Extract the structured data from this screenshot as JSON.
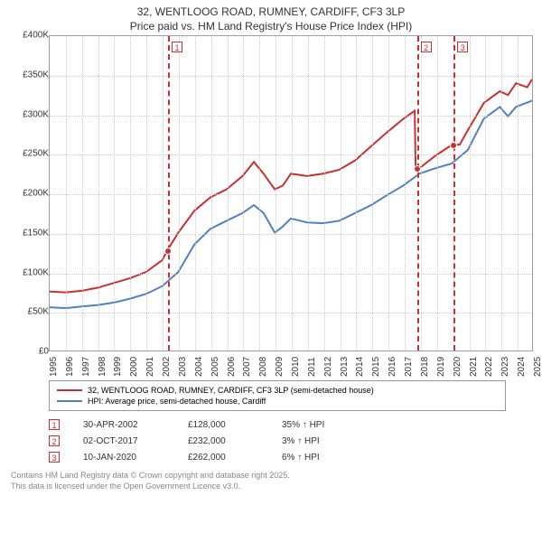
{
  "title": {
    "line1": "32, WENTLOOG ROAD, RUMNEY, CARDIFF, CF3 3LP",
    "line2": "Price paid vs. HM Land Registry's House Price Index (HPI)"
  },
  "chart": {
    "type": "line",
    "background_color": "#ffffff",
    "grid_color": "#cccccc",
    "border_color": "#a0a0a0",
    "x_min": 1995,
    "x_max": 2025,
    "y_min": 0,
    "y_max": 400000,
    "y_ticks": [
      0,
      50000,
      100000,
      150000,
      200000,
      250000,
      300000,
      350000,
      400000
    ],
    "y_tick_labels": [
      "£0",
      "£50K",
      "£100K",
      "£150K",
      "£200K",
      "£250K",
      "£300K",
      "£350K",
      "£400K"
    ],
    "x_ticks": [
      1995,
      1996,
      1997,
      1998,
      1999,
      2000,
      2001,
      2002,
      2003,
      2004,
      2005,
      2006,
      2007,
      2008,
      2009,
      2010,
      2011,
      2012,
      2013,
      2014,
      2015,
      2016,
      2017,
      2018,
      2019,
      2020,
      2021,
      2022,
      2023,
      2024,
      2025
    ],
    "series": [
      {
        "name": "property",
        "label": "32, WENTLOOG ROAD, RUMNEY, CARDIFF, CF3 3LP (semi-detached house)",
        "color": "#c83030",
        "line_width": 2,
        "data": [
          [
            1995,
            75000
          ],
          [
            1996,
            74000
          ],
          [
            1997,
            76000
          ],
          [
            1998,
            80000
          ],
          [
            1999,
            86000
          ],
          [
            2000,
            92000
          ],
          [
            2001,
            100000
          ],
          [
            2002,
            115000
          ],
          [
            2002.33,
            128000
          ],
          [
            2003,
            150000
          ],
          [
            2004,
            178000
          ],
          [
            2005,
            195000
          ],
          [
            2006,
            205000
          ],
          [
            2007,
            222000
          ],
          [
            2007.7,
            240000
          ],
          [
            2008.3,
            225000
          ],
          [
            2009,
            205000
          ],
          [
            2009.5,
            210000
          ],
          [
            2010,
            225000
          ],
          [
            2011,
            222000
          ],
          [
            2012,
            225000
          ],
          [
            2013,
            230000
          ],
          [
            2014,
            242000
          ],
          [
            2015,
            260000
          ],
          [
            2016,
            278000
          ],
          [
            2017,
            295000
          ],
          [
            2017.7,
            305000
          ],
          [
            2017.76,
            232000
          ],
          [
            2018,
            232000
          ],
          [
            2019,
            248000
          ],
          [
            2020.03,
            262000
          ],
          [
            2020.5,
            262000
          ],
          [
            2021,
            280000
          ],
          [
            2022,
            315000
          ],
          [
            2023,
            330000
          ],
          [
            2023.5,
            325000
          ],
          [
            2024,
            340000
          ],
          [
            2024.7,
            335000
          ],
          [
            2025,
            345000
          ]
        ]
      },
      {
        "name": "hpi",
        "label": "HPI: Average price, semi-detached house, Cardiff",
        "color": "#5080c0",
        "line_width": 2,
        "data": [
          [
            1995,
            55000
          ],
          [
            1996,
            54000
          ],
          [
            1997,
            56000
          ],
          [
            1998,
            58000
          ],
          [
            1999,
            61000
          ],
          [
            2000,
            66000
          ],
          [
            2001,
            72000
          ],
          [
            2002,
            82000
          ],
          [
            2003,
            100000
          ],
          [
            2004,
            135000
          ],
          [
            2005,
            155000
          ],
          [
            2006,
            165000
          ],
          [
            2007,
            175000
          ],
          [
            2007.7,
            185000
          ],
          [
            2008.3,
            175000
          ],
          [
            2009,
            150000
          ],
          [
            2009.5,
            158000
          ],
          [
            2010,
            168000
          ],
          [
            2011,
            163000
          ],
          [
            2012,
            162000
          ],
          [
            2013,
            165000
          ],
          [
            2014,
            175000
          ],
          [
            2015,
            185000
          ],
          [
            2016,
            198000
          ],
          [
            2017,
            210000
          ],
          [
            2018,
            225000
          ],
          [
            2019,
            232000
          ],
          [
            2020,
            238000
          ],
          [
            2021,
            255000
          ],
          [
            2022,
            295000
          ],
          [
            2023,
            310000
          ],
          [
            2023.5,
            298000
          ],
          [
            2024,
            310000
          ],
          [
            2025,
            318000
          ]
        ]
      }
    ],
    "reference_lines": [
      {
        "num": "1",
        "x": 2002.33,
        "color": "#c83030"
      },
      {
        "num": "2",
        "x": 2017.76,
        "color": "#c83030"
      },
      {
        "num": "3",
        "x": 2020.03,
        "color": "#c83030"
      }
    ],
    "markers": [
      {
        "x": 2002.33,
        "y": 128000
      },
      {
        "x": 2017.76,
        "y": 232000
      },
      {
        "x": 2020.03,
        "y": 262000
      }
    ]
  },
  "legend": {
    "items": [
      {
        "color": "#c83030",
        "label": "32, WENTLOOG ROAD, RUMNEY, CARDIFF, CF3 3LP (semi-detached house)"
      },
      {
        "color": "#5080c0",
        "label": "HPI: Average price, semi-detached house, Cardiff"
      }
    ]
  },
  "ref_table": [
    {
      "num": "1",
      "date": "30-APR-2002",
      "price": "£128,000",
      "pct": "35% ↑ HPI"
    },
    {
      "num": "2",
      "date": "02-OCT-2017",
      "price": "£232,000",
      "pct": "3% ↑ HPI"
    },
    {
      "num": "3",
      "date": "10-JAN-2020",
      "price": "£262,000",
      "pct": "6% ↑ HPI"
    }
  ],
  "attribution": {
    "line1": "Contains HM Land Registry data © Crown copyright and database right 2025.",
    "line2": "This data is licensed under the Open Government Licence v3.0."
  }
}
